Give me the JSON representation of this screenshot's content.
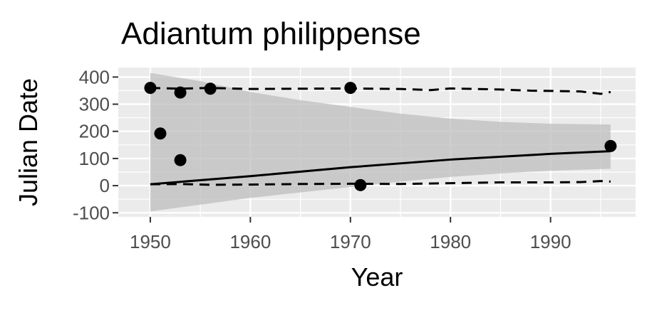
{
  "chart_data": {
    "type": "scatter",
    "title": "Adiantum philippense",
    "xlabel": "Year",
    "ylabel": "Julian Date",
    "xlim": [
      1946.8,
      1998.5
    ],
    "ylim": [
      -115,
      435
    ],
    "x_ticks": [
      1950,
      1960,
      1970,
      1980,
      1990
    ],
    "y_ticks": [
      -100,
      0,
      100,
      200,
      300,
      400
    ],
    "grid": true,
    "legend": "none",
    "colors": {
      "panel": "#ebebeb",
      "grid": "#ffffff",
      "points": "#000000",
      "ribbon": "#bdbdbd",
      "tick_text": "#4d4d4d"
    },
    "points": [
      {
        "x": 1950,
        "y": 360
      },
      {
        "x": 1951,
        "y": 192
      },
      {
        "x": 1953,
        "y": 343
      },
      {
        "x": 1953,
        "y": 94
      },
      {
        "x": 1956,
        "y": 357
      },
      {
        "x": 1970,
        "y": 360
      },
      {
        "x": 1971,
        "y": 2
      },
      {
        "x": 1996,
        "y": 146
      }
    ],
    "fit_line": {
      "x": [
        1950,
        1960,
        1970,
        1980,
        1990,
        1996
      ],
      "y": [
        5,
        35,
        68,
        96,
        117,
        127
      ]
    },
    "confidence_band": {
      "x": [
        1950,
        1955,
        1960,
        1965,
        1970,
        1975,
        1980,
        1985,
        1990,
        1996
      ],
      "upper": [
        415,
        385,
        345,
        315,
        290,
        265,
        247,
        235,
        228,
        225
      ],
      "lower": [
        -95,
        -70,
        -45,
        -25,
        -5,
        15,
        32,
        45,
        55,
        62
      ]
    },
    "upper_dashed": {
      "x": [
        1950,
        1953,
        1956,
        1960,
        1965,
        1970,
        1975,
        1978,
        1980,
        1985,
        1988,
        1990,
        1993,
        1995,
        1996
      ],
      "y": [
        360,
        357,
        360,
        356,
        357,
        358,
        356,
        352,
        358,
        354,
        350,
        349,
        347,
        338,
        345
      ]
    },
    "lower_dashed": {
      "x": [
        1950,
        1953,
        1956,
        1960,
        1965,
        1970,
        1975,
        1980,
        1985,
        1990,
        1993,
        1995,
        1996
      ],
      "y": [
        5,
        6,
        3,
        4,
        6,
        7,
        6,
        9,
        12,
        12,
        13,
        17,
        15
      ]
    }
  }
}
